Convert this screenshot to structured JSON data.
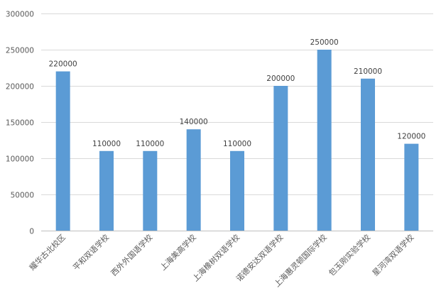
{
  "chart_data": {
    "type": "bar",
    "title": "",
    "xlabel": "",
    "ylabel": "",
    "categories": [
      "耀华古北校区",
      "平和双语学校",
      "西外外国语学校",
      "上海美高学校",
      "上海橡树双语学校",
      "诺德安达双语学校",
      "上海惠灵顿国际学校",
      "包玉刚实验学校",
      "星河湾双语学校"
    ],
    "values": [
      220000,
      110000,
      110000,
      140000,
      110000,
      200000,
      250000,
      210000,
      120000
    ],
    "data_labels": [
      "220000",
      "110000",
      "110000",
      "140000",
      "110000",
      "200000",
      "250000",
      "210000",
      "120000"
    ],
    "ylim": [
      0,
      300000
    ],
    "yticks": [
      "0",
      "50000",
      "100000",
      "150000",
      "200000",
      "250000",
      "300000"
    ],
    "grid": true,
    "legend": "none",
    "colors": {
      "bar": "#5B9BD5",
      "grid": "#D9D9D9",
      "axis": "#BFBFBF"
    }
  }
}
